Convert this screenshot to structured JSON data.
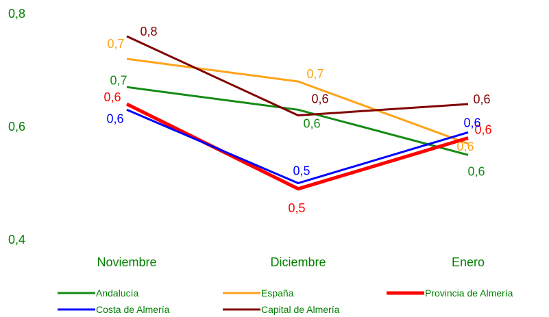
{
  "chart_data": {
    "type": "line",
    "categories": [
      "Noviembre",
      "Diciembre",
      "Enero"
    ],
    "ylim": [
      0.4,
      0.8
    ],
    "yticks": [
      "0,4",
      "0,6",
      "0,8"
    ],
    "tick_color": "#008000",
    "grid": false,
    "legend_position": "bottom",
    "series": [
      {
        "name": "Andalucía",
        "color": "#138A13",
        "values": [
          0.67,
          0.63,
          0.55
        ],
        "labels": [
          "0,7",
          "0,6",
          "0,6"
        ]
      },
      {
        "name": "España",
        "color": "#FFA31A",
        "values": [
          0.72,
          0.68,
          0.57
        ],
        "labels": [
          "0,7",
          "0,7",
          "0,6"
        ]
      },
      {
        "name": "Provincia de Almería",
        "color": "#FF0000",
        "values": [
          0.64,
          0.49,
          0.58
        ],
        "labels": [
          "0,6",
          "0,5",
          "0,6"
        ]
      },
      {
        "name": "Costa de Almería",
        "color": "#0000FF",
        "values": [
          0.63,
          0.5,
          0.59
        ],
        "labels": [
          "0,6",
          "0,5",
          "0,6"
        ]
      },
      {
        "name": "Capital de Almería",
        "color": "#800000",
        "values": [
          0.76,
          0.62,
          0.64
        ],
        "labels": [
          "0,8",
          "0,6",
          "0,6"
        ]
      }
    ]
  }
}
